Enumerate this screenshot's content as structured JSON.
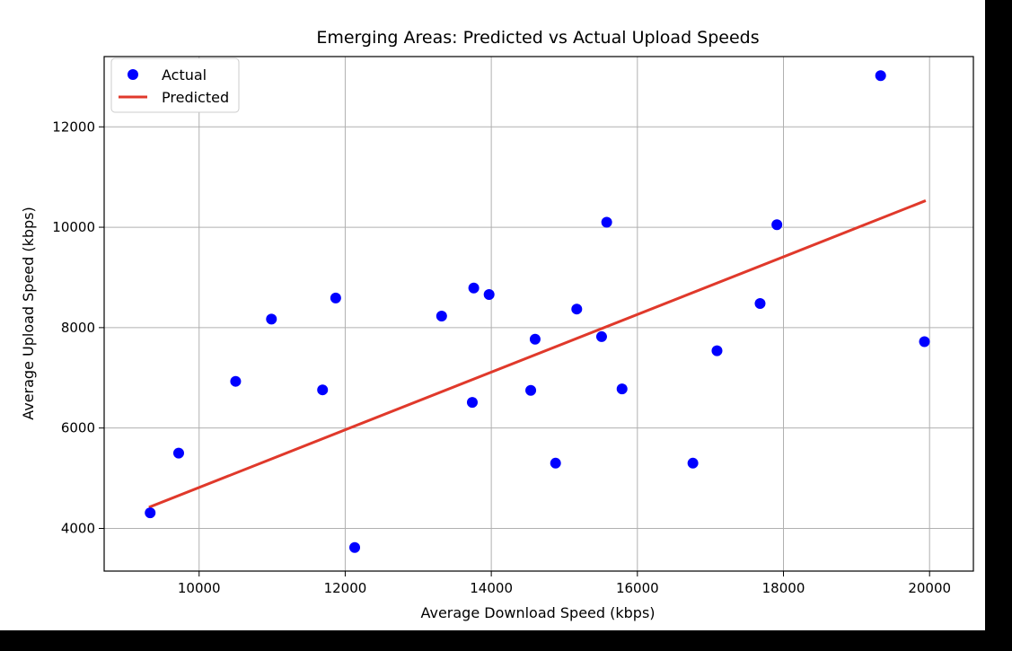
{
  "colors": {
    "actual_marker": "#0000ff",
    "predicted_line": "#e0392b",
    "background": "#ffffff",
    "grid": "#b0b0b0"
  },
  "chart_data": {
    "type": "scatter",
    "title": "Emerging Areas: Predicted vs Actual Upload Speeds",
    "xlabel": "Average Download Speed (kbps)",
    "ylabel": "Average Upload Speed (kbps)",
    "xlim": [
      8700,
      20600
    ],
    "ylim": [
      3150,
      13400
    ],
    "xticks": [
      10000,
      12000,
      14000,
      16000,
      18000,
      20000
    ],
    "yticks": [
      4000,
      6000,
      8000,
      10000,
      12000
    ],
    "xtick_labels": [
      "10000",
      "12000",
      "14000",
      "16000",
      "18000",
      "20000"
    ],
    "ytick_labels": [
      "4000",
      "6000",
      "8000",
      "10000",
      "12000"
    ],
    "grid": true,
    "legend_position": "top-left",
    "series": [
      {
        "name": "Actual",
        "kind": "scatter",
        "color": "#0000ff",
        "points": [
          {
            "x": 9330,
            "y": 4310
          },
          {
            "x": 9720,
            "y": 5500
          },
          {
            "x": 10500,
            "y": 6930
          },
          {
            "x": 10990,
            "y": 8170
          },
          {
            "x": 11690,
            "y": 6760
          },
          {
            "x": 11870,
            "y": 8590
          },
          {
            "x": 12130,
            "y": 3620
          },
          {
            "x": 13320,
            "y": 8230
          },
          {
            "x": 13740,
            "y": 6510
          },
          {
            "x": 13760,
            "y": 8790
          },
          {
            "x": 13970,
            "y": 8660
          },
          {
            "x": 14540,
            "y": 6750
          },
          {
            "x": 14600,
            "y": 7770
          },
          {
            "x": 14880,
            "y": 5300
          },
          {
            "x": 15170,
            "y": 8370
          },
          {
            "x": 15510,
            "y": 7820
          },
          {
            "x": 15580,
            "y": 10100
          },
          {
            "x": 15790,
            "y": 6780
          },
          {
            "x": 16760,
            "y": 5300
          },
          {
            "x": 17090,
            "y": 7540
          },
          {
            "x": 17680,
            "y": 8480
          },
          {
            "x": 17910,
            "y": 10050
          },
          {
            "x": 19330,
            "y": 13020
          },
          {
            "x": 19930,
            "y": 7720
          }
        ]
      },
      {
        "name": "Predicted",
        "kind": "line",
        "color": "#e0392b",
        "points": [
          {
            "x": 9330,
            "y": 4430
          },
          {
            "x": 19930,
            "y": 10520
          }
        ]
      }
    ]
  }
}
